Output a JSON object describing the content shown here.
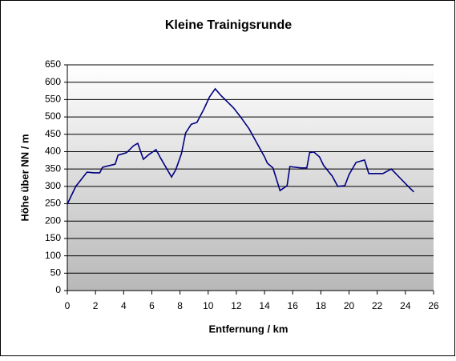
{
  "chart_data": {
    "type": "line",
    "title": "Kleine Trainigsrunde",
    "x_label": "Entfernung / km",
    "y_label": "Höhe über NN / m",
    "xlim": [
      0,
      26
    ],
    "xticks": [
      0,
      2,
      4,
      6,
      8,
      10,
      12,
      14,
      16,
      18,
      20,
      22,
      24,
      26
    ],
    "ylim": [
      0,
      650
    ],
    "yticks": [
      0,
      50,
      100,
      150,
      200,
      250,
      300,
      350,
      400,
      450,
      500,
      550,
      600,
      650
    ],
    "grid": true,
    "series": [
      {
        "color": "#000080",
        "x": [
          0,
          0.6,
          1.4,
          1.9,
          2.3,
          2.5,
          3.2,
          3.4,
          3.6,
          4.2,
          4.7,
          5.0,
          5.4,
          5.8,
          6.3,
          6.6,
          7.4,
          7.7,
          8.1,
          8.4,
          8.8,
          9.2,
          9.7,
          10.1,
          10.5,
          10.9,
          11.4,
          11.8,
          12.3,
          12.9,
          13.4,
          14.0,
          14.2,
          14.6,
          15.1,
          15.6,
          15.8,
          16.6,
          17.0,
          17.2,
          17.5,
          17.9,
          18.2,
          18.8,
          19.2,
          19.7,
          20.0,
          20.5,
          21.1,
          21.4,
          22.4,
          23.0,
          23.6,
          24.1,
          24.6
        ],
        "values": [
          249,
          300,
          341,
          339,
          339,
          355,
          362,
          364,
          390,
          397,
          417,
          424,
          378,
          392,
          406,
          383,
          327,
          348,
          394,
          454,
          479,
          484,
          523,
          558,
          581,
          562,
          542,
          526,
          500,
          466,
          429,
          385,
          367,
          353,
          288,
          302,
          357,
          353,
          353,
          397,
          399,
          385,
          360,
          330,
          300,
          302,
          334,
          369,
          376,
          337,
          337,
          350,
          325,
          304,
          284
        ]
      }
    ]
  }
}
